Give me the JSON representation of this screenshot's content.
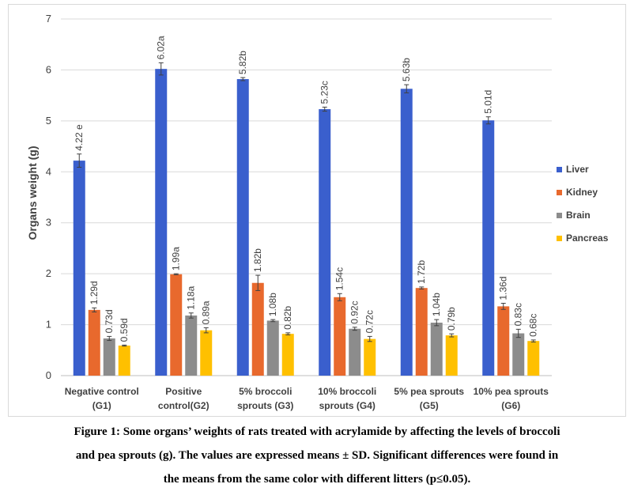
{
  "chart_data": {
    "type": "bar",
    "ylabel": "Organs weight (g)",
    "ylim": [
      0,
      7
    ],
    "yticks": [
      0,
      1,
      2,
      3,
      4,
      5,
      6,
      7
    ],
    "grid": true,
    "legend_position": "right",
    "categories": [
      "Negative control (G1)",
      "Positive control(G2)",
      "5% broccoli sprouts (G3)",
      "10% broccoli sprouts (G4)",
      "5% pea sprouts (G5)",
      "10% pea sprouts (G6)"
    ],
    "category_lines": [
      [
        "Negative control",
        "(G1)"
      ],
      [
        "Positive",
        "control(G2)"
      ],
      [
        "5% broccoli",
        "sprouts (G3)"
      ],
      [
        "10% broccoli",
        "sprouts (G4)"
      ],
      [
        "5% pea sprouts",
        "(G5)"
      ],
      [
        "10% pea sprouts",
        "(G6)"
      ]
    ],
    "series": [
      {
        "name": "Liver",
        "color": "#3a5fcd",
        "values": [
          4.22,
          6.02,
          5.82,
          5.23,
          5.63,
          5.01
        ],
        "errors": [
          0.13,
          0.12,
          0.03,
          0.04,
          0.08,
          0.07
        ],
        "labels": [
          "4.22 e",
          "6.02a",
          "5.82b",
          "5.23c",
          "5.63b",
          "5.01d"
        ]
      },
      {
        "name": "Kidney",
        "color": "#e8692d",
        "values": [
          1.29,
          1.99,
          1.82,
          1.54,
          1.72,
          1.36
        ],
        "errors": [
          0.04,
          0.01,
          0.15,
          0.07,
          0.02,
          0.06
        ],
        "labels": [
          "1.29d",
          "1.99a",
          "1.82b",
          "1.54c",
          "1.72b",
          "1.36d"
        ]
      },
      {
        "name": "Brain",
        "color": "#8c8c8c",
        "values": [
          0.73,
          1.18,
          1.08,
          0.92,
          1.04,
          0.83
        ],
        "errors": [
          0.04,
          0.05,
          0.02,
          0.03,
          0.06,
          0.08
        ],
        "labels": [
          "0.73d",
          "1.18a",
          "1.08b",
          "0.92c",
          "1.04b",
          "0.83c"
        ]
      },
      {
        "name": "Pancreas",
        "color": "#ffc000",
        "values": [
          0.59,
          0.89,
          0.82,
          0.72,
          0.79,
          0.68
        ],
        "errors": [
          0.01,
          0.05,
          0.02,
          0.05,
          0.03,
          0.02
        ],
        "labels": [
          "0.59d",
          "0.89a",
          "0.82b",
          "0.72c",
          "0.79b",
          "0.68c"
        ]
      }
    ]
  },
  "caption": {
    "line1": "Figure 1: Some organs’ weights of rats treated with acrylamide by affecting the levels of broccoli",
    "line2": "and pea sprouts (g). The values are expressed means ± SD. Significant differences were found in",
    "line3": "the means from the same color with different litters (p≤0.05)."
  }
}
